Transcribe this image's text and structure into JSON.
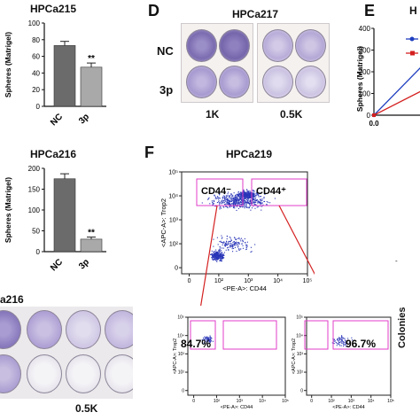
{
  "chart_data": [
    {
      "type": "bar",
      "title": "HPCa215",
      "categories": [
        "NC",
        "3p"
      ],
      "values": [
        73,
        47
      ],
      "errors": [
        5,
        5
      ],
      "significance": [
        "",
        "**"
      ],
      "ylabel": "Spheres (Matrigel)",
      "ylim": [
        0,
        100
      ],
      "yticks": [
        "0",
        "20",
        "40",
        "60",
        "80",
        "100"
      ]
    },
    {
      "type": "bar",
      "title": "HPCa216",
      "categories": [
        "NC",
        "3p"
      ],
      "values": [
        175,
        30
      ],
      "errors": [
        12,
        5
      ],
      "significance": [
        "",
        "**"
      ],
      "ylabel": "Spheres (Matrigel)",
      "ylim": [
        0,
        200
      ],
      "yticks": [
        "0",
        "50",
        "100",
        "150",
        "200"
      ]
    },
    {
      "type": "line",
      "panel": "E",
      "ylabel": "Spheres (Matrigel)",
      "ytick": "0",
      "xtick": "0.0",
      "series": [
        {
          "color": "#1f3fbf",
          "x": [
            0,
            1
          ],
          "y": [
            0,
            300
          ]
        },
        {
          "color": "#d42020",
          "x": [
            0,
            1
          ],
          "y": [
            0,
            150
          ]
        }
      ],
      "ylim": [
        0,
        400
      ],
      "yticks": [
        "0",
        "100",
        "200",
        "300",
        "400"
      ]
    },
    {
      "type": "scatter",
      "panel": "F",
      "title": "HPCa219",
      "xlabel": "<PE-A>: CD44",
      "ylabel": "<APC-A>: Trop2",
      "xticks": [
        "0",
        "10²",
        "10³",
        "10⁴",
        "10⁵"
      ],
      "yticks": [
        "0",
        "10²",
        "10³",
        "10⁴",
        "10⁵"
      ],
      "gates": [
        "CD44⁻",
        "CD44⁺"
      ]
    },
    {
      "type": "scatter",
      "panel": "F-sub-left",
      "xlabel": "<PE-A>: CD44",
      "ylabel": "<APC-A>: Trop2",
      "percent": "84.7%",
      "xticks": [
        "0",
        "10²",
        "10³",
        "10⁴",
        "10⁵"
      ],
      "yticks": [
        "0",
        "10²",
        "10³",
        "10⁴",
        "10⁵"
      ]
    },
    {
      "type": "scatter",
      "panel": "F-sub-right",
      "xlabel": "<PE-A>: CD44",
      "ylabel": "<APC-A>: Trop2",
      "percent": "96.7%",
      "xticks": [
        "0",
        "10²",
        "10³",
        "10⁴",
        "10⁵"
      ],
      "yticks": [
        "0",
        "10²",
        "10³",
        "10⁴",
        "10⁵"
      ]
    }
  ],
  "panelD": {
    "label": "D",
    "title": "HPCa217",
    "rows": [
      "NC",
      "3p"
    ],
    "cols": [
      "1K",
      "0.5K"
    ]
  },
  "panelE": {
    "label": "E",
    "title_fragment": "H"
  },
  "panelF": {
    "label": "F"
  },
  "bottomLeft": {
    "title_fragment": "a216",
    "col": "0.5K"
  },
  "colonies_label": "Colonies",
  "colors": {
    "bar": "#6b6b6b",
    "bar2": "#a9a9a9",
    "gate": "#e03cc8",
    "arrow": "#d42020",
    "dots": "#2a36b8"
  }
}
